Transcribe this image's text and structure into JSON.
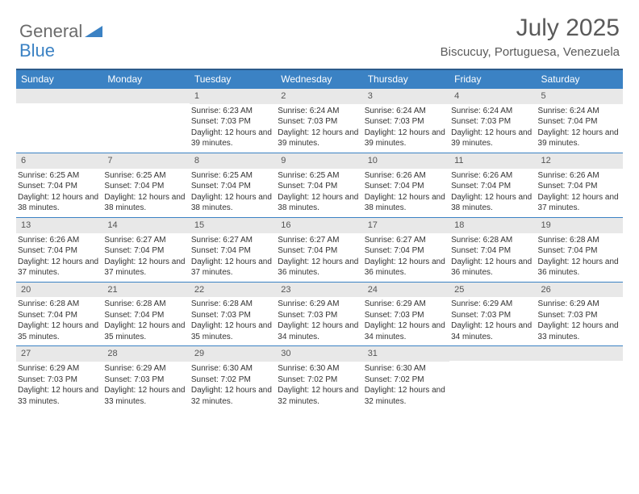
{
  "logo": {
    "text1": "General",
    "text2": "Blue"
  },
  "title": "July 2025",
  "location": "Biscucuy, Portuguesa, Venezuela",
  "colors": {
    "accent": "#3b82c4",
    "header_border": "#2c5a8a",
    "day_num_bg": "#e8e8e8",
    "text": "#333333",
    "muted": "#5a5a5a"
  },
  "day_names": [
    "Sunday",
    "Monday",
    "Tuesday",
    "Wednesday",
    "Thursday",
    "Friday",
    "Saturday"
  ],
  "weeks": [
    [
      null,
      null,
      {
        "n": "1",
        "sr": "6:23 AM",
        "ss": "7:03 PM",
        "dl": "12 hours and 39 minutes."
      },
      {
        "n": "2",
        "sr": "6:24 AM",
        "ss": "7:03 PM",
        "dl": "12 hours and 39 minutes."
      },
      {
        "n": "3",
        "sr": "6:24 AM",
        "ss": "7:03 PM",
        "dl": "12 hours and 39 minutes."
      },
      {
        "n": "4",
        "sr": "6:24 AM",
        "ss": "7:03 PM",
        "dl": "12 hours and 39 minutes."
      },
      {
        "n": "5",
        "sr": "6:24 AM",
        "ss": "7:04 PM",
        "dl": "12 hours and 39 minutes."
      }
    ],
    [
      {
        "n": "6",
        "sr": "6:25 AM",
        "ss": "7:04 PM",
        "dl": "12 hours and 38 minutes."
      },
      {
        "n": "7",
        "sr": "6:25 AM",
        "ss": "7:04 PM",
        "dl": "12 hours and 38 minutes."
      },
      {
        "n": "8",
        "sr": "6:25 AM",
        "ss": "7:04 PM",
        "dl": "12 hours and 38 minutes."
      },
      {
        "n": "9",
        "sr": "6:25 AM",
        "ss": "7:04 PM",
        "dl": "12 hours and 38 minutes."
      },
      {
        "n": "10",
        "sr": "6:26 AM",
        "ss": "7:04 PM",
        "dl": "12 hours and 38 minutes."
      },
      {
        "n": "11",
        "sr": "6:26 AM",
        "ss": "7:04 PM",
        "dl": "12 hours and 38 minutes."
      },
      {
        "n": "12",
        "sr": "6:26 AM",
        "ss": "7:04 PM",
        "dl": "12 hours and 37 minutes."
      }
    ],
    [
      {
        "n": "13",
        "sr": "6:26 AM",
        "ss": "7:04 PM",
        "dl": "12 hours and 37 minutes."
      },
      {
        "n": "14",
        "sr": "6:27 AM",
        "ss": "7:04 PM",
        "dl": "12 hours and 37 minutes."
      },
      {
        "n": "15",
        "sr": "6:27 AM",
        "ss": "7:04 PM",
        "dl": "12 hours and 37 minutes."
      },
      {
        "n": "16",
        "sr": "6:27 AM",
        "ss": "7:04 PM",
        "dl": "12 hours and 36 minutes."
      },
      {
        "n": "17",
        "sr": "6:27 AM",
        "ss": "7:04 PM",
        "dl": "12 hours and 36 minutes."
      },
      {
        "n": "18",
        "sr": "6:28 AM",
        "ss": "7:04 PM",
        "dl": "12 hours and 36 minutes."
      },
      {
        "n": "19",
        "sr": "6:28 AM",
        "ss": "7:04 PM",
        "dl": "12 hours and 36 minutes."
      }
    ],
    [
      {
        "n": "20",
        "sr": "6:28 AM",
        "ss": "7:04 PM",
        "dl": "12 hours and 35 minutes."
      },
      {
        "n": "21",
        "sr": "6:28 AM",
        "ss": "7:04 PM",
        "dl": "12 hours and 35 minutes."
      },
      {
        "n": "22",
        "sr": "6:28 AM",
        "ss": "7:03 PM",
        "dl": "12 hours and 35 minutes."
      },
      {
        "n": "23",
        "sr": "6:29 AM",
        "ss": "7:03 PM",
        "dl": "12 hours and 34 minutes."
      },
      {
        "n": "24",
        "sr": "6:29 AM",
        "ss": "7:03 PM",
        "dl": "12 hours and 34 minutes."
      },
      {
        "n": "25",
        "sr": "6:29 AM",
        "ss": "7:03 PM",
        "dl": "12 hours and 34 minutes."
      },
      {
        "n": "26",
        "sr": "6:29 AM",
        "ss": "7:03 PM",
        "dl": "12 hours and 33 minutes."
      }
    ],
    [
      {
        "n": "27",
        "sr": "6:29 AM",
        "ss": "7:03 PM",
        "dl": "12 hours and 33 minutes."
      },
      {
        "n": "28",
        "sr": "6:29 AM",
        "ss": "7:03 PM",
        "dl": "12 hours and 33 minutes."
      },
      {
        "n": "29",
        "sr": "6:30 AM",
        "ss": "7:02 PM",
        "dl": "12 hours and 32 minutes."
      },
      {
        "n": "30",
        "sr": "6:30 AM",
        "ss": "7:02 PM",
        "dl": "12 hours and 32 minutes."
      },
      {
        "n": "31",
        "sr": "6:30 AM",
        "ss": "7:02 PM",
        "dl": "12 hours and 32 minutes."
      },
      null,
      null
    ]
  ],
  "labels": {
    "sunrise": "Sunrise:",
    "sunset": "Sunset:",
    "daylight": "Daylight:"
  }
}
